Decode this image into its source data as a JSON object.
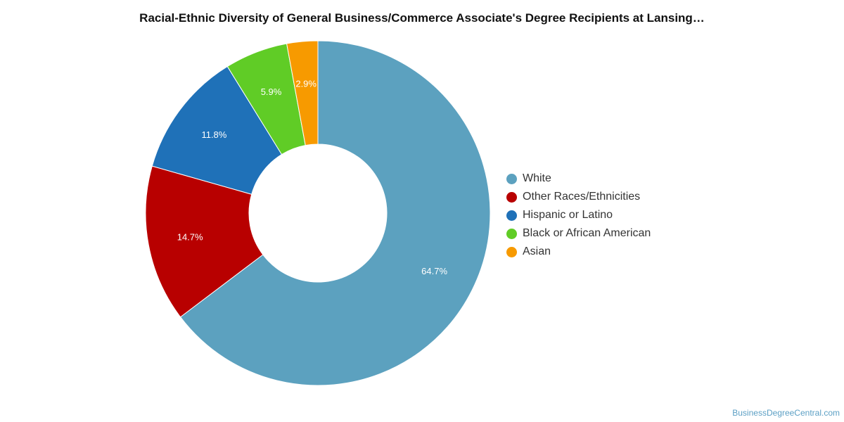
{
  "chart_data": {
    "type": "pie",
    "title": "Racial-Ethnic Diversity of General Business/Commerce Associate's Degree Recipients at Lansing…",
    "series": [
      {
        "name": "White",
        "value": 64.7,
        "label": "64.7%",
        "color": "#5ca1bf"
      },
      {
        "name": "Other Races/Ethnicities",
        "value": 14.7,
        "label": "14.7%",
        "color": "#b80000"
      },
      {
        "name": "Hispanic or Latino",
        "value": 11.8,
        "label": "11.8%",
        "color": "#1f71b8"
      },
      {
        "name": "Black or African American",
        "value": 5.9,
        "label": "5.9%",
        "color": "#60cc26"
      },
      {
        "name": "Asian",
        "value": 2.9,
        "label": "2.9%",
        "color": "#f79a00"
      }
    ],
    "legend_position": "right",
    "donut": true
  },
  "watermark": "BusinessDegreeCentral.com"
}
